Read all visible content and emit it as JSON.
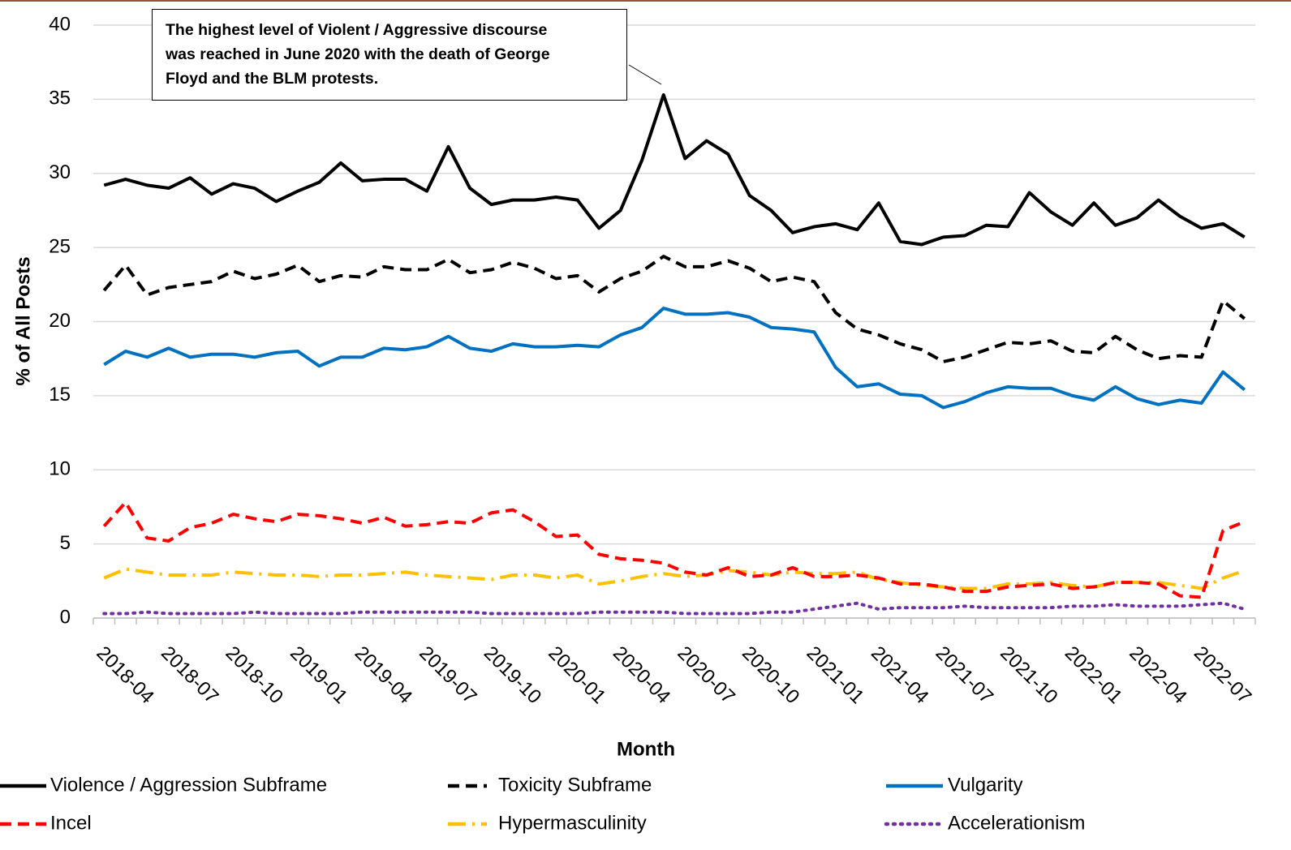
{
  "chart_data": {
    "type": "line",
    "annotation": [
      "The highest level of Violent / Aggressive discourse",
      "was reached in June 2020 with the death of George",
      "Floyd and the BLM protests."
    ],
    "x_label": "Month",
    "y_label": "% of All Posts",
    "categories": [
      "2018-04",
      null,
      null,
      "2018-07",
      null,
      null,
      "2018-10",
      null,
      null,
      "2019-01",
      null,
      null,
      "2019-04",
      null,
      null,
      "2019-07",
      null,
      null,
      "2019-10",
      null,
      null,
      "2020-01",
      null,
      null,
      "2020-04",
      null,
      null,
      "2020-07",
      null,
      null,
      "2020-10",
      null,
      null,
      "2021-01",
      null,
      null,
      "2021-04",
      null,
      null,
      "2021-07",
      null,
      null,
      "2021-10",
      null,
      null,
      "2022-01",
      null,
      null,
      "2022-04",
      null,
      null,
      "2022-07",
      null,
      null
    ],
    "ylim": [
      0,
      40
    ],
    "yticks": [
      0,
      5,
      10,
      15,
      20,
      25,
      30,
      35,
      40
    ],
    "grid": true,
    "series": [
      {
        "name": "Violence / Aggression Subframe",
        "color": "#000000",
        "values": [
          29.2,
          29.6,
          29.2,
          29.0,
          29.7,
          28.6,
          29.3,
          29.0,
          28.1,
          28.8,
          29.4,
          30.7,
          29.5,
          29.6,
          29.6,
          28.8,
          31.8,
          29.0,
          27.9,
          28.2,
          28.2,
          28.4,
          28.2,
          26.3,
          27.5,
          30.9,
          35.3,
          31.0,
          32.2,
          31.3,
          28.5,
          27.5,
          26.0,
          26.4,
          26.6,
          26.2,
          28.0,
          25.4,
          25.2,
          25.7,
          25.8,
          26.5,
          26.4,
          28.7,
          27.4,
          26.5,
          28.0,
          26.5,
          27.0,
          28.2,
          27.1,
          26.3,
          26.6,
          25.7
        ]
      },
      {
        "name": "Toxicity Subframe",
        "color": "#000000",
        "values": [
          22.1,
          23.8,
          21.8,
          22.3,
          22.5,
          22.7,
          23.4,
          22.9,
          23.2,
          23.8,
          22.7,
          23.1,
          23.0,
          23.7,
          23.5,
          23.5,
          24.2,
          23.3,
          23.5,
          24.0,
          23.6,
          22.9,
          23.1,
          22.0,
          22.9,
          23.4,
          24.4,
          23.7,
          23.7,
          24.1,
          23.6,
          22.7,
          23.0,
          22.7,
          20.6,
          19.5,
          19.1,
          18.5,
          18.1,
          17.3,
          17.6,
          18.1,
          18.6,
          18.5,
          18.7,
          18.0,
          17.9,
          19.0,
          18.1,
          17.5,
          17.7,
          17.6,
          21.4,
          20.2
        ]
      },
      {
        "name": "Vulgarity",
        "color": "#0070c0",
        "values": [
          17.1,
          18.0,
          17.6,
          18.2,
          17.6,
          17.8,
          17.8,
          17.6,
          17.9,
          18.0,
          17.0,
          17.6,
          17.6,
          18.2,
          18.1,
          18.3,
          19.0,
          18.2,
          18.0,
          18.5,
          18.3,
          18.3,
          18.4,
          18.3,
          19.1,
          19.6,
          20.9,
          20.5,
          20.5,
          20.6,
          20.3,
          19.6,
          19.5,
          19.3,
          16.9,
          15.6,
          15.8,
          15.1,
          15.0,
          14.2,
          14.6,
          15.2,
          15.6,
          15.5,
          15.5,
          15.0,
          14.7,
          15.6,
          14.8,
          14.4,
          14.7,
          14.5,
          16.6,
          15.4
        ]
      },
      {
        "name": "Incel",
        "color": "#ff0000",
        "values": [
          6.2,
          7.8,
          5.4,
          5.2,
          6.1,
          6.4,
          7.0,
          6.7,
          6.5,
          7.0,
          6.9,
          6.7,
          6.4,
          6.8,
          6.2,
          6.3,
          6.5,
          6.4,
          7.1,
          7.3,
          6.5,
          5.5,
          5.6,
          4.3,
          4.0,
          3.9,
          3.7,
          3.1,
          2.9,
          3.4,
          2.8,
          2.9,
          3.4,
          2.8,
          2.8,
          2.9,
          2.7,
          2.3,
          2.3,
          2.1,
          1.8,
          1.8,
          2.1,
          2.2,
          2.3,
          2.0,
          2.1,
          2.4,
          2.4,
          2.3,
          1.5,
          1.4,
          5.9,
          6.5
        ]
      },
      {
        "name": "Hypermasculinity",
        "color": "#ffc000",
        "values": [
          2.7,
          3.3,
          3.1,
          2.9,
          2.9,
          2.9,
          3.1,
          3.0,
          2.9,
          2.9,
          2.8,
          2.9,
          2.9,
          3.0,
          3.1,
          2.9,
          2.8,
          2.7,
          2.6,
          2.9,
          2.9,
          2.7,
          2.9,
          2.3,
          2.5,
          2.8,
          3.0,
          2.8,
          2.9,
          3.2,
          3.1,
          2.9,
          3.1,
          3.0,
          3.0,
          3.1,
          2.6,
          2.4,
          2.2,
          2.1,
          2.0,
          2.0,
          2.3,
          2.3,
          2.4,
          2.2,
          2.1,
          2.4,
          2.4,
          2.4,
          2.2,
          2.0,
          2.7,
          3.2
        ]
      },
      {
        "name": "Accelerationism",
        "color": "#7030a0",
        "values": [
          0.3,
          0.3,
          0.4,
          0.3,
          0.3,
          0.3,
          0.3,
          0.4,
          0.3,
          0.3,
          0.3,
          0.3,
          0.4,
          0.4,
          0.4,
          0.4,
          0.4,
          0.4,
          0.3,
          0.3,
          0.3,
          0.3,
          0.3,
          0.4,
          0.4,
          0.4,
          0.4,
          0.3,
          0.3,
          0.3,
          0.3,
          0.4,
          0.4,
          0.6,
          0.8,
          1.0,
          0.6,
          0.7,
          0.7,
          0.7,
          0.8,
          0.7,
          0.7,
          0.7,
          0.7,
          0.8,
          0.8,
          0.9,
          0.8,
          0.8,
          0.8,
          0.9,
          1.0,
          0.6
        ]
      }
    ]
  }
}
